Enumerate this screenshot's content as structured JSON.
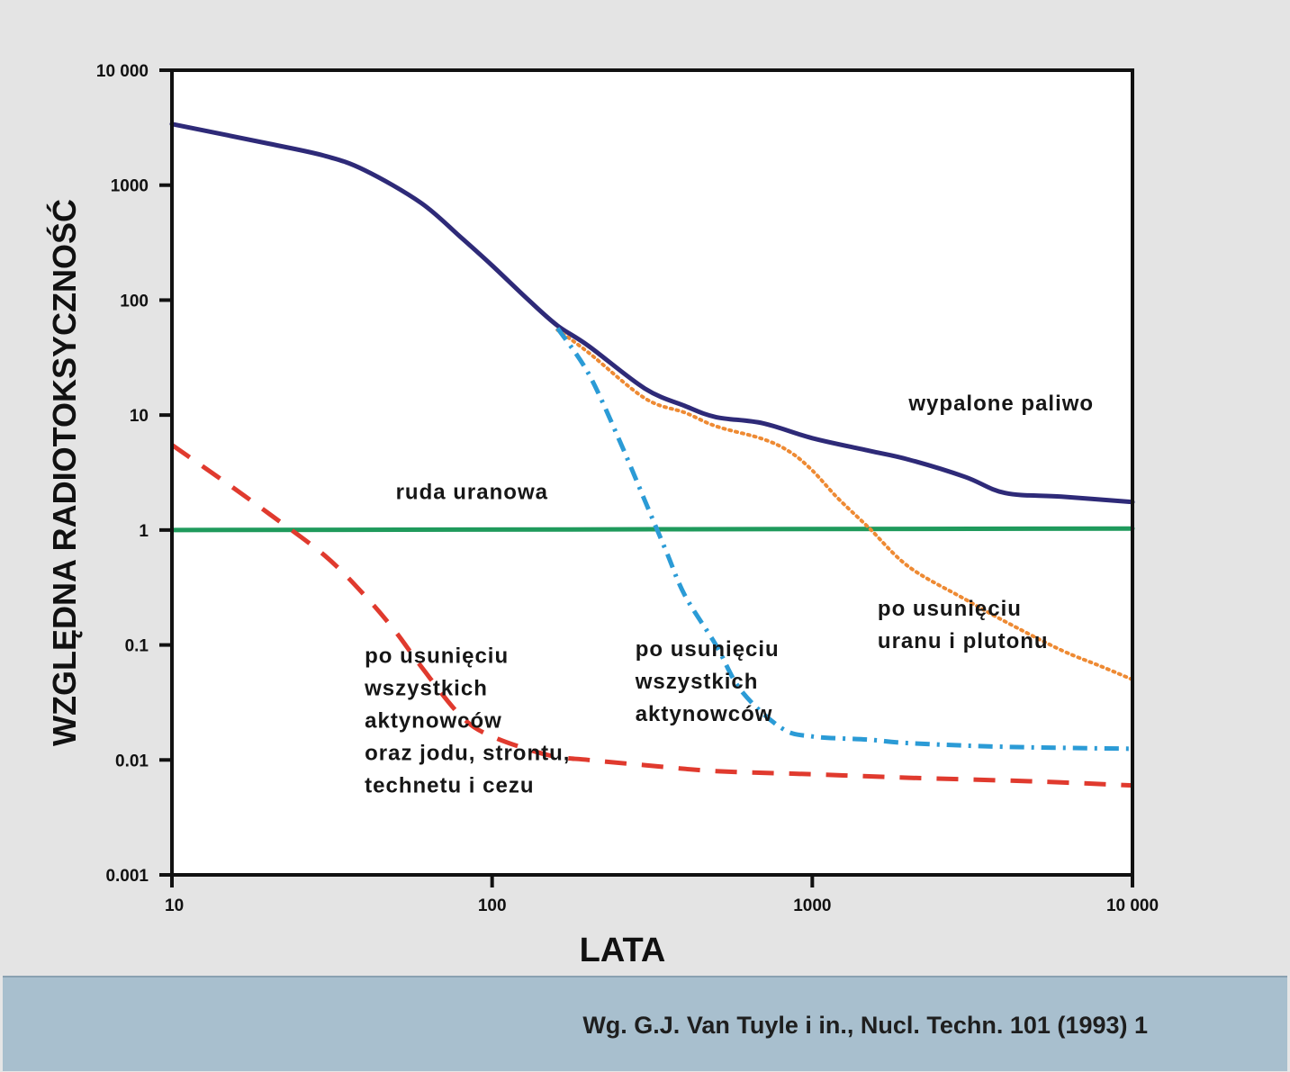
{
  "chart_data": {
    "type": "line",
    "title": "",
    "xlabel": "LATA",
    "ylabel": "WZGLĘDNA RADIOTOKSYCZNOŚĆ",
    "x_scale": "log",
    "y_scale": "log",
    "xlim": [
      10,
      10000
    ],
    "ylim": [
      0.001,
      10000
    ],
    "x_ticks": [
      {
        "value": 10,
        "label": "10"
      },
      {
        "value": 100,
        "label": "100"
      },
      {
        "value": 1000,
        "label": "1000"
      },
      {
        "value": 10000,
        "label": "10 000"
      }
    ],
    "y_ticks": [
      {
        "value": 10000,
        "label": "10 000"
      },
      {
        "value": 1000,
        "label": "1000"
      },
      {
        "value": 100,
        "label": "100"
      },
      {
        "value": 10,
        "label": "10"
      },
      {
        "value": 1,
        "label": "1"
      },
      {
        "value": 0.1,
        "label": "0.1"
      },
      {
        "value": 0.01,
        "label": "0.01"
      },
      {
        "value": 0.001,
        "label": "0.001"
      }
    ],
    "grid": false,
    "legend": "none",
    "series": [
      {
        "id": "wypalone",
        "color": "#2e2a78",
        "style": "solid",
        "points": [
          [
            10,
            3400
          ],
          [
            20,
            2300
          ],
          [
            30,
            1800
          ],
          [
            40,
            1350
          ],
          [
            60,
            700
          ],
          [
            80,
            350
          ],
          [
            100,
            200
          ],
          [
            130,
            100
          ],
          [
            160,
            60
          ],
          [
            200,
            40
          ],
          [
            300,
            17
          ],
          [
            400,
            12
          ],
          [
            500,
            9.6
          ],
          [
            700,
            8.5
          ],
          [
            1000,
            6.3
          ],
          [
            1500,
            4.9
          ],
          [
            2000,
            4.1
          ],
          [
            3000,
            2.9
          ],
          [
            4000,
            2.1
          ],
          [
            6000,
            1.95
          ],
          [
            10000,
            1.75
          ]
        ]
      },
      {
        "id": "ruda",
        "color": "#1f9a5c",
        "style": "solid",
        "points": [
          [
            10,
            1.0
          ],
          [
            10000,
            1.03
          ]
        ]
      },
      {
        "id": "bez_uranu_plutonu",
        "color": "#ee8a33",
        "style": "dotted",
        "points": [
          [
            160,
            55
          ],
          [
            200,
            35
          ],
          [
            300,
            14
          ],
          [
            400,
            10.5
          ],
          [
            500,
            8
          ],
          [
            700,
            6.2
          ],
          [
            850,
            4.8
          ],
          [
            1000,
            3.3
          ],
          [
            1200,
            1.9
          ],
          [
            1500,
            1.05
          ],
          [
            2000,
            0.48
          ],
          [
            3000,
            0.25
          ],
          [
            4000,
            0.16
          ],
          [
            6000,
            0.09
          ],
          [
            8000,
            0.065
          ],
          [
            10000,
            0.05
          ]
        ]
      },
      {
        "id": "bez_aktynowcow",
        "color": "#2b9bd6",
        "style": "dashdot",
        "points": [
          [
            160,
            57
          ],
          [
            200,
            23
          ],
          [
            250,
            6
          ],
          [
            300,
            1.8
          ],
          [
            350,
            0.65
          ],
          [
            400,
            0.27
          ],
          [
            500,
            0.1
          ],
          [
            600,
            0.04
          ],
          [
            800,
            0.019
          ],
          [
            1000,
            0.016
          ],
          [
            1500,
            0.015
          ],
          [
            2000,
            0.014
          ],
          [
            4000,
            0.013
          ],
          [
            10000,
            0.0125
          ]
        ]
      },
      {
        "id": "bez_aktynowcow_jodu",
        "color": "#e03a2e",
        "style": "dashed",
        "points": [
          [
            10,
            5.5
          ],
          [
            15,
            2.5
          ],
          [
            20,
            1.4
          ],
          [
            30,
            0.6
          ],
          [
            40,
            0.27
          ],
          [
            50,
            0.13
          ],
          [
            60,
            0.065
          ],
          [
            80,
            0.024
          ],
          [
            100,
            0.016
          ],
          [
            150,
            0.011
          ],
          [
            200,
            0.01
          ],
          [
            300,
            0.009
          ],
          [
            500,
            0.008
          ],
          [
            1000,
            0.0075
          ],
          [
            2000,
            0.007
          ],
          [
            5000,
            0.0065
          ],
          [
            10000,
            0.006
          ]
        ]
      }
    ],
    "annotations": [
      {
        "id": "wypalone_label",
        "text": "wypalone paliwo",
        "x": 2000,
        "y": 11
      },
      {
        "id": "ruda_label",
        "text": "ruda uranowa",
        "x": 50,
        "y": 1.85
      },
      {
        "id": "urpu_label",
        "lines": [
          "po usunięciu",
          "uranu i plutonu"
        ],
        "x": 1600,
        "y": 0.18
      },
      {
        "id": "akt_label",
        "lines": [
          "po usunięciu",
          "wszystkich",
          "aktynowców"
        ],
        "x": 280,
        "y": 0.08
      },
      {
        "id": "all_label",
        "lines": [
          "po usunięciu",
          "wszystkich",
          "aktynowców",
          "oraz jodu, strontu,",
          "technetu i cezu"
        ],
        "x": 40,
        "y": 0.07
      }
    ]
  },
  "footer": {
    "citation": "Wg. G.J. Van Tuyle i in., Nucl. Techn. 101 (1993) 1"
  }
}
